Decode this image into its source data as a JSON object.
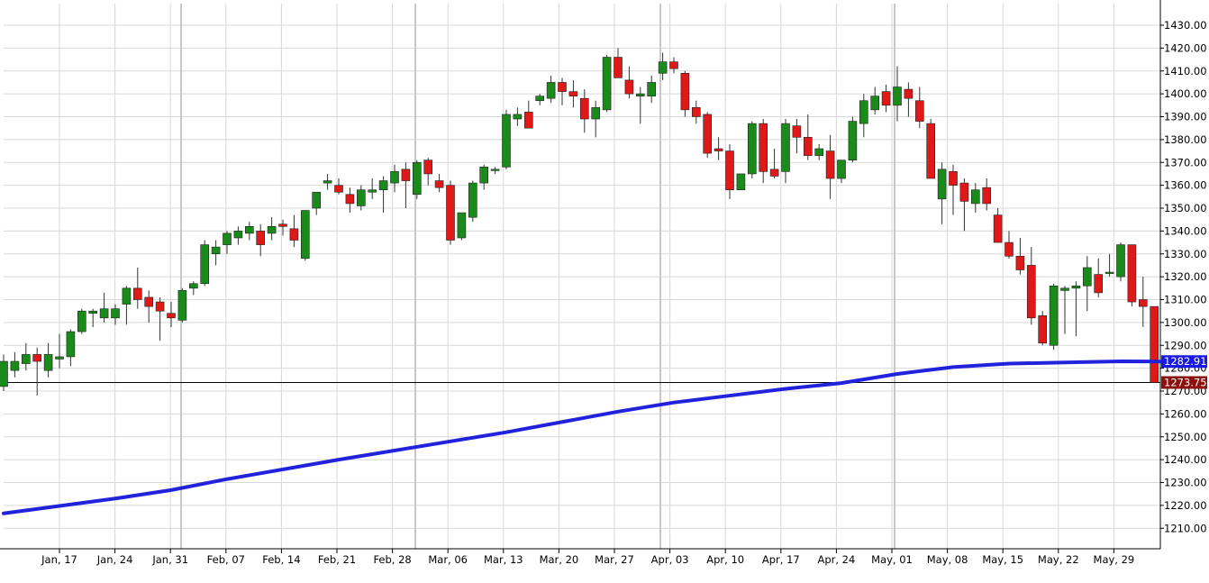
{
  "chart_data": {
    "type": "candlestick",
    "y_axis": {
      "ticks": [
        "1210.00",
        "1220.00",
        "1230.00",
        "1240.00",
        "1250.00",
        "1260.00",
        "1270.00",
        "1280.00",
        "1290.00",
        "1300.00",
        "1310.00",
        "1320.00",
        "1330.00",
        "1340.00",
        "1350.00",
        "1360.00",
        "1370.00",
        "1380.00",
        "1390.00",
        "1400.00",
        "1410.00",
        "1420.00",
        "1430.00"
      ],
      "ylim": [
        1203,
        1436
      ],
      "side": "right"
    },
    "x_axis": {
      "ticks": [
        "Jan, 17",
        "Jan, 24",
        "Jan, 31",
        "Feb, 07",
        "Feb, 14",
        "Feb, 21",
        "Feb, 28",
        "Mar, 06",
        "Mar, 13",
        "Mar, 20",
        "Mar, 27",
        "Apr, 03",
        "Apr, 10",
        "Apr, 17",
        "Apr, 24",
        "May, 01",
        "May, 08",
        "May, 15",
        "May, 22",
        "May, 29"
      ]
    },
    "grid": true,
    "colors": {
      "up": "#1a8a1a",
      "down": "#e01818",
      "ma_line": "#2222dd",
      "grid": "#d8d8d8",
      "vline": "#c8c8c8"
    },
    "candles": [
      {
        "o": 1272,
        "h": 1286,
        "l": 1270,
        "c": 1283
      },
      {
        "o": 1279,
        "h": 1287,
        "l": 1276,
        "c": 1283
      },
      {
        "o": 1282,
        "h": 1291,
        "l": 1279,
        "c": 1286
      },
      {
        "o": 1286,
        "h": 1289,
        "l": 1268,
        "c": 1283
      },
      {
        "o": 1279,
        "h": 1291,
        "l": 1276,
        "c": 1286
      },
      {
        "o": 1284,
        "h": 1295,
        "l": 1280,
        "c": 1285
      },
      {
        "o": 1285,
        "h": 1297,
        "l": 1281,
        "c": 1296
      },
      {
        "o": 1296,
        "h": 1306,
        "l": 1295,
        "c": 1305
      },
      {
        "o": 1304,
        "h": 1306,
        "l": 1298,
        "c": 1305
      },
      {
        "o": 1302,
        "h": 1313,
        "l": 1300,
        "c": 1306
      },
      {
        "o": 1302,
        "h": 1308,
        "l": 1299,
        "c": 1306
      },
      {
        "o": 1308,
        "h": 1316,
        "l": 1299,
        "c": 1315
      },
      {
        "o": 1315,
        "h": 1324,
        "l": 1306,
        "c": 1310
      },
      {
        "o": 1311,
        "h": 1314,
        "l": 1300,
        "c": 1307
      },
      {
        "o": 1309,
        "h": 1311,
        "l": 1292,
        "c": 1305
      },
      {
        "o": 1304,
        "h": 1309,
        "l": 1298,
        "c": 1302
      },
      {
        "o": 1301,
        "h": 1315,
        "l": 1300,
        "c": 1314
      },
      {
        "o": 1315,
        "h": 1318,
        "l": 1312,
        "c": 1317
      },
      {
        "o": 1317,
        "h": 1336,
        "l": 1316,
        "c": 1334
      },
      {
        "o": 1330,
        "h": 1336,
        "l": 1325,
        "c": 1333
      },
      {
        "o": 1334,
        "h": 1340,
        "l": 1330,
        "c": 1339
      },
      {
        "o": 1337,
        "h": 1342,
        "l": 1334,
        "c": 1340
      },
      {
        "o": 1339,
        "h": 1344,
        "l": 1336,
        "c": 1342
      },
      {
        "o": 1340,
        "h": 1343,
        "l": 1329,
        "c": 1334
      },
      {
        "o": 1339,
        "h": 1346,
        "l": 1336,
        "c": 1342
      },
      {
        "o": 1343,
        "h": 1345,
        "l": 1338,
        "c": 1342
      },
      {
        "o": 1341,
        "h": 1347,
        "l": 1333,
        "c": 1336
      },
      {
        "o": 1328,
        "h": 1349,
        "l": 1327,
        "c": 1349
      },
      {
        "o": 1350,
        "h": 1356,
        "l": 1347,
        "c": 1357
      },
      {
        "o": 1361,
        "h": 1365,
        "l": 1358,
        "c": 1362
      },
      {
        "o": 1360,
        "h": 1363,
        "l": 1356,
        "c": 1357
      },
      {
        "o": 1356,
        "h": 1359,
        "l": 1348,
        "c": 1352
      },
      {
        "o": 1351,
        "h": 1360,
        "l": 1349,
        "c": 1358
      },
      {
        "o": 1357,
        "h": 1363,
        "l": 1354,
        "c": 1358
      },
      {
        "o": 1358,
        "h": 1364,
        "l": 1348,
        "c": 1362
      },
      {
        "o": 1361,
        "h": 1369,
        "l": 1357,
        "c": 1366
      },
      {
        "o": 1367,
        "h": 1370,
        "l": 1350,
        "c": 1362
      },
      {
        "o": 1356,
        "h": 1371,
        "l": 1354,
        "c": 1370
      },
      {
        "o": 1371,
        "h": 1372,
        "l": 1360,
        "c": 1365
      },
      {
        "o": 1362,
        "h": 1365,
        "l": 1357,
        "c": 1359
      },
      {
        "o": 1360,
        "h": 1362,
        "l": 1334,
        "c": 1336
      },
      {
        "o": 1337,
        "h": 1348,
        "l": 1336,
        "c": 1348
      },
      {
        "o": 1346,
        "h": 1362,
        "l": 1344,
        "c": 1361
      },
      {
        "o": 1361,
        "h": 1369,
        "l": 1358,
        "c": 1368
      },
      {
        "o": 1367,
        "h": 1368,
        "l": 1365,
        "c": 1367
      },
      {
        "o": 1368,
        "h": 1393,
        "l": 1367,
        "c": 1391
      },
      {
        "o": 1389,
        "h": 1394,
        "l": 1386,
        "c": 1391
      },
      {
        "o": 1392,
        "h": 1397,
        "l": 1385,
        "c": 1385
      },
      {
        "o": 1397,
        "h": 1400,
        "l": 1395,
        "c": 1399
      },
      {
        "o": 1398,
        "h": 1408,
        "l": 1396,
        "c": 1405
      },
      {
        "o": 1405,
        "h": 1407,
        "l": 1395,
        "c": 1401
      },
      {
        "o": 1401,
        "h": 1406,
        "l": 1394,
        "c": 1399
      },
      {
        "o": 1398,
        "h": 1402,
        "l": 1383,
        "c": 1389
      },
      {
        "o": 1389,
        "h": 1397,
        "l": 1381,
        "c": 1394
      },
      {
        "o": 1393,
        "h": 1417,
        "l": 1392,
        "c": 1416
      },
      {
        "o": 1416,
        "h": 1420,
        "l": 1407,
        "c": 1407
      },
      {
        "o": 1406,
        "h": 1412,
        "l": 1398,
        "c": 1400
      },
      {
        "o": 1399,
        "h": 1403,
        "l": 1387,
        "c": 1400
      },
      {
        "o": 1399,
        "h": 1408,
        "l": 1396,
        "c": 1405
      },
      {
        "o": 1409,
        "h": 1418,
        "l": 1406,
        "c": 1414
      },
      {
        "o": 1414,
        "h": 1416,
        "l": 1409,
        "c": 1411
      },
      {
        "o": 1409,
        "h": 1410,
        "l": 1390,
        "c": 1393
      },
      {
        "o": 1394,
        "h": 1397,
        "l": 1387,
        "c": 1390
      },
      {
        "o": 1391,
        "h": 1392,
        "l": 1372,
        "c": 1374
      },
      {
        "o": 1376,
        "h": 1381,
        "l": 1371,
        "c": 1375
      },
      {
        "o": 1375,
        "h": 1378,
        "l": 1354,
        "c": 1358
      },
      {
        "o": 1358,
        "h": 1365,
        "l": 1358,
        "c": 1365
      },
      {
        "o": 1365,
        "h": 1388,
        "l": 1363,
        "c": 1387
      },
      {
        "o": 1387,
        "h": 1389,
        "l": 1361,
        "c": 1366
      },
      {
        "o": 1367,
        "h": 1376,
        "l": 1363,
        "c": 1364
      },
      {
        "o": 1366,
        "h": 1389,
        "l": 1361,
        "c": 1387
      },
      {
        "o": 1386,
        "h": 1389,
        "l": 1374,
        "c": 1381
      },
      {
        "o": 1381,
        "h": 1391,
        "l": 1371,
        "c": 1373
      },
      {
        "o": 1373,
        "h": 1378,
        "l": 1371,
        "c": 1376
      },
      {
        "o": 1375,
        "h": 1382,
        "l": 1354,
        "c": 1363
      },
      {
        "o": 1363,
        "h": 1371,
        "l": 1361,
        "c": 1371
      },
      {
        "o": 1371,
        "h": 1390,
        "l": 1370,
        "c": 1388
      },
      {
        "o": 1387,
        "h": 1400,
        "l": 1381,
        "c": 1397
      },
      {
        "o": 1393,
        "h": 1403,
        "l": 1391,
        "c": 1399
      },
      {
        "o": 1401,
        "h": 1404,
        "l": 1392,
        "c": 1395
      },
      {
        "o": 1395,
        "h": 1412,
        "l": 1388,
        "c": 1403
      },
      {
        "o": 1402,
        "h": 1405,
        "l": 1390,
        "c": 1398
      },
      {
        "o": 1397,
        "h": 1403,
        "l": 1385,
        "c": 1388
      },
      {
        "o": 1387,
        "h": 1389,
        "l": 1364,
        "c": 1363
      },
      {
        "o": 1354,
        "h": 1370,
        "l": 1343,
        "c": 1367
      },
      {
        "o": 1366,
        "h": 1369,
        "l": 1347,
        "c": 1360
      },
      {
        "o": 1361,
        "h": 1363,
        "l": 1340,
        "c": 1353
      },
      {
        "o": 1352,
        "h": 1361,
        "l": 1348,
        "c": 1358
      },
      {
        "o": 1359,
        "h": 1363,
        "l": 1349,
        "c": 1352
      },
      {
        "o": 1347,
        "h": 1350,
        "l": 1335,
        "c": 1335
      },
      {
        "o": 1335,
        "h": 1340,
        "l": 1328,
        "c": 1329
      },
      {
        "o": 1329,
        "h": 1337,
        "l": 1321,
        "c": 1323
      },
      {
        "o": 1325,
        "h": 1333,
        "l": 1299,
        "c": 1302
      },
      {
        "o": 1303,
        "h": 1305,
        "l": 1290,
        "c": 1291
      },
      {
        "o": 1290,
        "h": 1317,
        "l": 1288,
        "c": 1316
      },
      {
        "o": 1314,
        "h": 1316,
        "l": 1295,
        "c": 1315
      },
      {
        "o": 1315,
        "h": 1318,
        "l": 1294,
        "c": 1316
      },
      {
        "o": 1316,
        "h": 1329,
        "l": 1305,
        "c": 1324
      },
      {
        "o": 1321,
        "h": 1328,
        "l": 1311,
        "c": 1313
      },
      {
        "o": 1322,
        "h": 1330,
        "l": 1320,
        "c": 1322
      },
      {
        "o": 1320,
        "h": 1335,
        "l": 1318,
        "c": 1334
      },
      {
        "o": 1334,
        "h": 1334,
        "l": 1307,
        "c": 1309
      },
      {
        "o": 1310,
        "h": 1320,
        "l": 1298,
        "c": 1307
      },
      {
        "o": 1307,
        "h": 1307,
        "l": 1273.75,
        "c": 1273.75
      }
    ],
    "moving_average": [
      [
        0,
        1216.5
      ],
      [
        10,
        1223
      ],
      [
        15,
        1226.7
      ],
      [
        20,
        1231.5
      ],
      [
        30,
        1240
      ],
      [
        40,
        1248
      ],
      [
        45,
        1252
      ],
      [
        55,
        1261
      ],
      [
        60,
        1265
      ],
      [
        65,
        1268
      ],
      [
        70,
        1271
      ],
      [
        75,
        1273.5
      ],
      [
        80,
        1277.5
      ],
      [
        85,
        1280.5
      ],
      [
        90,
        1282
      ],
      [
        95,
        1282.5
      ],
      [
        100,
        1283
      ],
      [
        104,
        1282.9
      ]
    ],
    "ma_label": "1282.91",
    "last_price_label": "1273.75",
    "last_price": 1273.75,
    "ma_value": 1282.91
  }
}
